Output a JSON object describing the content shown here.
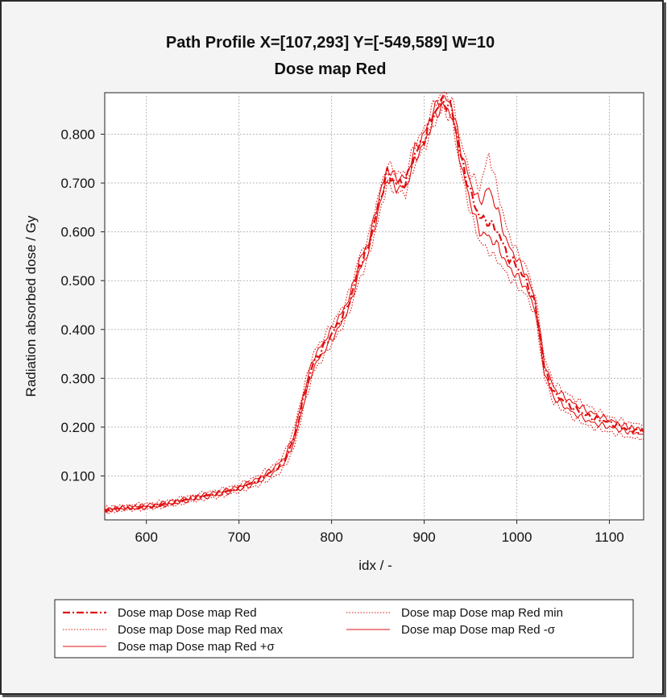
{
  "chart_data": {
    "type": "line",
    "title": "Path Profile X=[107,293] Y=[-549,589] W=10",
    "subtitle": "Dose map Red",
    "xlabel": "idx / -",
    "ylabel": "Radiation absorbed dose / Gy",
    "xlim": [
      555,
      1137
    ],
    "ylim": [
      0.01,
      0.885
    ],
    "xticks": [
      "600",
      "700",
      "800",
      "900",
      "1000",
      "1100"
    ],
    "xtick_values": [
      600,
      700,
      800,
      900,
      1000,
      1100
    ],
    "yticks": [
      "0.100",
      "0.200",
      "0.300",
      "0.400",
      "0.500",
      "0.600",
      "0.700",
      "0.800"
    ],
    "ytick_values": [
      0.1,
      0.2,
      0.3,
      0.4,
      0.5,
      0.6,
      0.7,
      0.8
    ],
    "grid": true,
    "legend_position": "bottom",
    "color": "#e01010",
    "x": [
      555,
      580,
      600,
      620,
      640,
      660,
      680,
      700,
      720,
      740,
      750,
      760,
      770,
      780,
      790,
      800,
      810,
      820,
      830,
      840,
      850,
      860,
      870,
      880,
      890,
      900,
      910,
      920,
      930,
      940,
      950,
      960,
      970,
      980,
      990,
      1000,
      1010,
      1020,
      1030,
      1040,
      1060,
      1080,
      1100,
      1120,
      1137
    ],
    "series": [
      {
        "name": "Dose map Dose map Red",
        "style": "dash-dot",
        "values": [
          0.03,
          0.035,
          0.037,
          0.042,
          0.05,
          0.058,
          0.065,
          0.075,
          0.09,
          0.115,
          0.135,
          0.18,
          0.26,
          0.33,
          0.36,
          0.39,
          0.42,
          0.46,
          0.53,
          0.57,
          0.65,
          0.72,
          0.7,
          0.7,
          0.76,
          0.79,
          0.84,
          0.87,
          0.85,
          0.75,
          0.68,
          0.63,
          0.62,
          0.6,
          0.55,
          0.53,
          0.5,
          0.45,
          0.32,
          0.27,
          0.24,
          0.22,
          0.21,
          0.195,
          0.19
        ]
      },
      {
        "name": "Dose map Dose map Red min",
        "style": "dotted",
        "values": [
          0.025,
          0.03,
          0.032,
          0.037,
          0.044,
          0.052,
          0.058,
          0.068,
          0.08,
          0.1,
          0.12,
          0.16,
          0.24,
          0.31,
          0.34,
          0.37,
          0.4,
          0.44,
          0.5,
          0.55,
          0.62,
          0.7,
          0.68,
          0.68,
          0.74,
          0.77,
          0.82,
          0.85,
          0.83,
          0.72,
          0.64,
          0.58,
          0.56,
          0.54,
          0.51,
          0.49,
          0.47,
          0.43,
          0.3,
          0.25,
          0.22,
          0.2,
          0.19,
          0.18,
          0.175
        ]
      },
      {
        "name": "Dose map Dose map Red max",
        "style": "dotted",
        "values": [
          0.035,
          0.04,
          0.043,
          0.048,
          0.056,
          0.064,
          0.072,
          0.082,
          0.1,
          0.125,
          0.15,
          0.2,
          0.28,
          0.35,
          0.38,
          0.41,
          0.44,
          0.48,
          0.55,
          0.59,
          0.67,
          0.74,
          0.72,
          0.72,
          0.78,
          0.81,
          0.86,
          0.885,
          0.87,
          0.78,
          0.72,
          0.69,
          0.76,
          0.68,
          0.6,
          0.56,
          0.53,
          0.47,
          0.34,
          0.29,
          0.26,
          0.24,
          0.22,
          0.21,
          0.205
        ]
      },
      {
        "name": "Dose map Dose map Red -σ",
        "style": "solid",
        "values": [
          0.028,
          0.033,
          0.035,
          0.04,
          0.047,
          0.055,
          0.062,
          0.072,
          0.086,
          0.11,
          0.13,
          0.172,
          0.25,
          0.32,
          0.35,
          0.38,
          0.41,
          0.45,
          0.52,
          0.56,
          0.64,
          0.71,
          0.69,
          0.69,
          0.75,
          0.78,
          0.83,
          0.86,
          0.84,
          0.735,
          0.66,
          0.6,
          0.59,
          0.57,
          0.53,
          0.51,
          0.485,
          0.44,
          0.31,
          0.26,
          0.23,
          0.21,
          0.2,
          0.19,
          0.185
        ]
      },
      {
        "name": "Dose map Dose map Red +σ",
        "style": "solid",
        "values": [
          0.032,
          0.037,
          0.04,
          0.045,
          0.053,
          0.061,
          0.068,
          0.078,
          0.094,
          0.12,
          0.14,
          0.188,
          0.27,
          0.34,
          0.37,
          0.4,
          0.43,
          0.47,
          0.54,
          0.58,
          0.66,
          0.73,
          0.71,
          0.71,
          0.77,
          0.8,
          0.85,
          0.875,
          0.86,
          0.765,
          0.7,
          0.66,
          0.69,
          0.64,
          0.575,
          0.545,
          0.515,
          0.46,
          0.33,
          0.28,
          0.25,
          0.23,
          0.215,
          0.2,
          0.195
        ]
      }
    ]
  }
}
